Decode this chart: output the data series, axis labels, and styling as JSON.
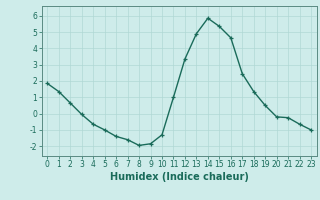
{
  "x": [
    0,
    1,
    2,
    3,
    4,
    5,
    6,
    7,
    8,
    9,
    10,
    11,
    12,
    13,
    14,
    15,
    16,
    17,
    18,
    19,
    20,
    21,
    22,
    23
  ],
  "y": [
    1.85,
    1.35,
    0.65,
    -0.05,
    -0.65,
    -1.0,
    -1.4,
    -1.6,
    -1.95,
    -1.85,
    -1.3,
    1.0,
    3.35,
    4.9,
    5.85,
    5.35,
    4.65,
    2.45,
    1.35,
    0.5,
    -0.2,
    -0.25,
    -0.65,
    -1.0
  ],
  "line_color": "#1a6b5a",
  "marker": "+",
  "markersize": 3.5,
  "linewidth": 1.0,
  "xlabel": "Humidex (Indice chaleur)",
  "xlabel_fontsize": 7,
  "xlim": [
    -0.5,
    23.5
  ],
  "ylim": [
    -2.6,
    6.6
  ],
  "yticks": [
    -2,
    -1,
    0,
    1,
    2,
    3,
    4,
    5,
    6
  ],
  "xticks": [
    0,
    1,
    2,
    3,
    4,
    5,
    6,
    7,
    8,
    9,
    10,
    11,
    12,
    13,
    14,
    15,
    16,
    17,
    18,
    19,
    20,
    21,
    22,
    23
  ],
  "background_color": "#ceecea",
  "grid_color": "#b0d8d5",
  "tick_fontsize": 5.5,
  "figure_bg": "#ceecea",
  "spine_color": "#5a8a82"
}
